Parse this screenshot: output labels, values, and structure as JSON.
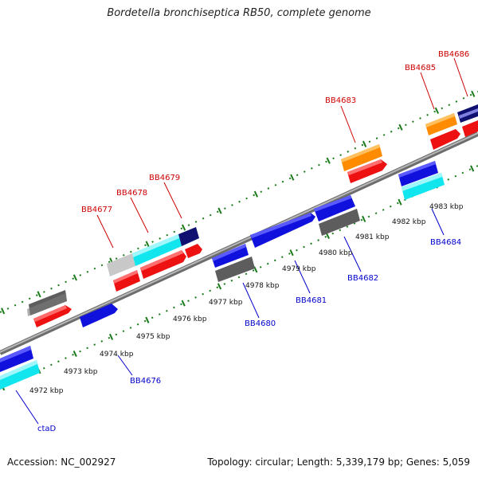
{
  "title": "Bordetella bronchiseptica RB50, complete genome",
  "footer": {
    "accession": "Accession: NC_002927",
    "summary": "Topology: circular; Length: 5,339,179 bp; Genes: 5,059"
  },
  "colors": {
    "backbone": "#8a8a8a",
    "tick": "#1a7a1a",
    "label_top": "#cc0000",
    "label_bottom": "#0000cc",
    "red": "#ee1111",
    "blue": "#1111dd",
    "navy": "#101070",
    "cyan": "#11e6ee",
    "gray": "#666666",
    "lightgray": "#c4c4c4",
    "orange": "#ff8c00"
  },
  "scale_labels": [
    "4972 kbp",
    "4973 kbp",
    "4974 kbp",
    "4975 kbp",
    "4976 kbp",
    "4977 kbp",
    "4978 kbp",
    "4979 kbp",
    "4980 kbp",
    "4981 kbp",
    "4982 kbp",
    "4983 kbp"
  ],
  "gene_labels_top": [
    "BB4677",
    "BB4678",
    "BB4679",
    "BB4683",
    "BB4685",
    "BB4686"
  ],
  "gene_labels_bottom": [
    "ctaD",
    "BB4676",
    "BB4680",
    "BB4681",
    "BB4682",
    "BB4684"
  ]
}
